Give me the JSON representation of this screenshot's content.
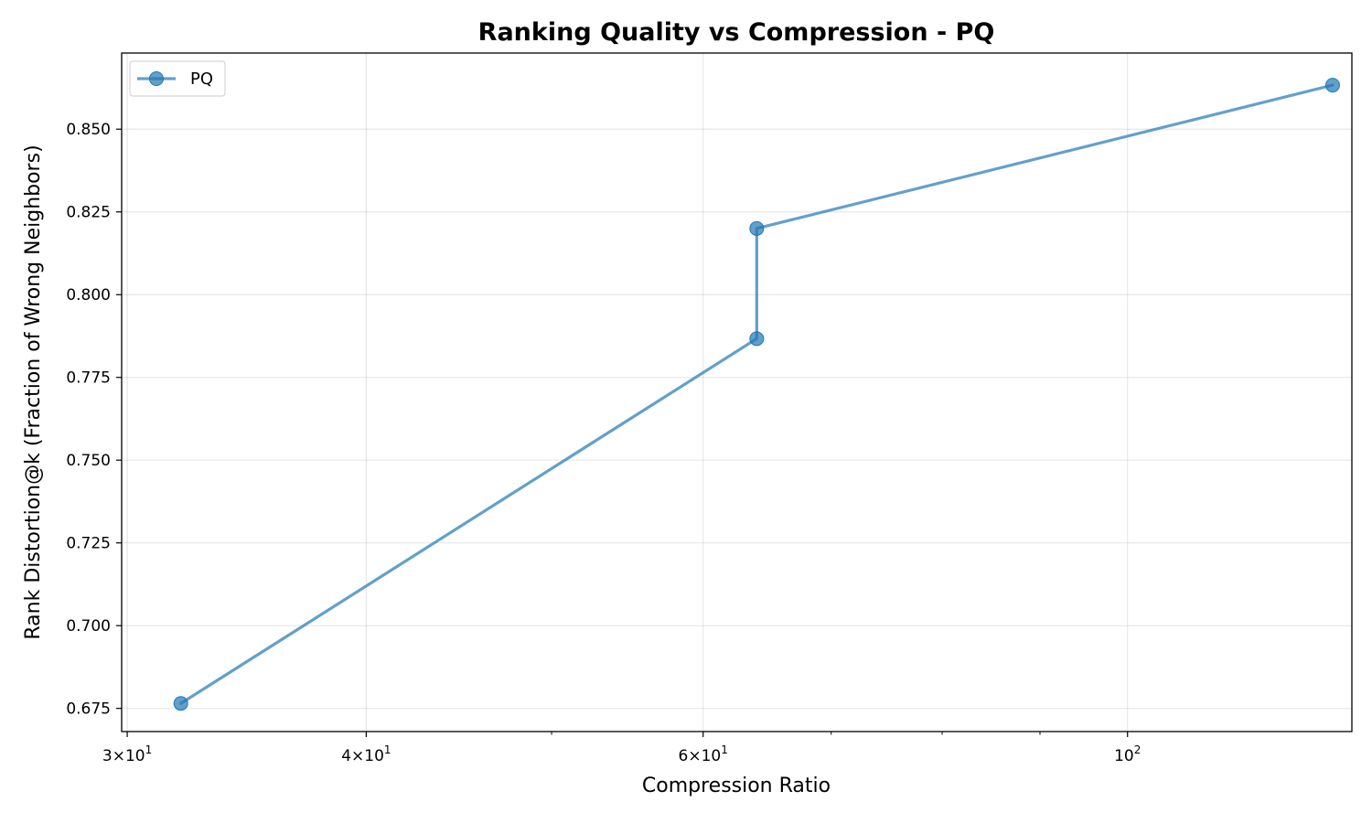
{
  "chart_data": {
    "type": "line",
    "title": "Ranking Quality vs Compression - PQ",
    "xlabel": "Compression Ratio",
    "ylabel": "Rank Distortion@k (Fraction of Wrong Neighbors)",
    "xscale": "log",
    "xlim": [
      29.8,
      131
    ],
    "ylim": [
      0.668,
      0.873
    ],
    "grid": true,
    "legend_position": "top-left",
    "x_ticks": [
      {
        "value": 30,
        "base": "3×10",
        "exp": "1"
      },
      {
        "value": 40,
        "base": "4×10",
        "exp": "1"
      },
      {
        "value": 60,
        "base": "6×10",
        "exp": "1"
      },
      {
        "value": 100,
        "base": "10",
        "exp": "2"
      }
    ],
    "x_minor_ticks": [
      50,
      70,
      80,
      90
    ],
    "y_ticks": [
      "0.675",
      "0.700",
      "0.725",
      "0.750",
      "0.775",
      "0.800",
      "0.825",
      "0.850"
    ],
    "series": [
      {
        "name": "PQ",
        "color": "#1f77b4",
        "x": [
          32,
          64,
          64,
          128
        ],
        "y": [
          0.6765,
          0.7867,
          0.82,
          0.8633
        ]
      }
    ]
  }
}
